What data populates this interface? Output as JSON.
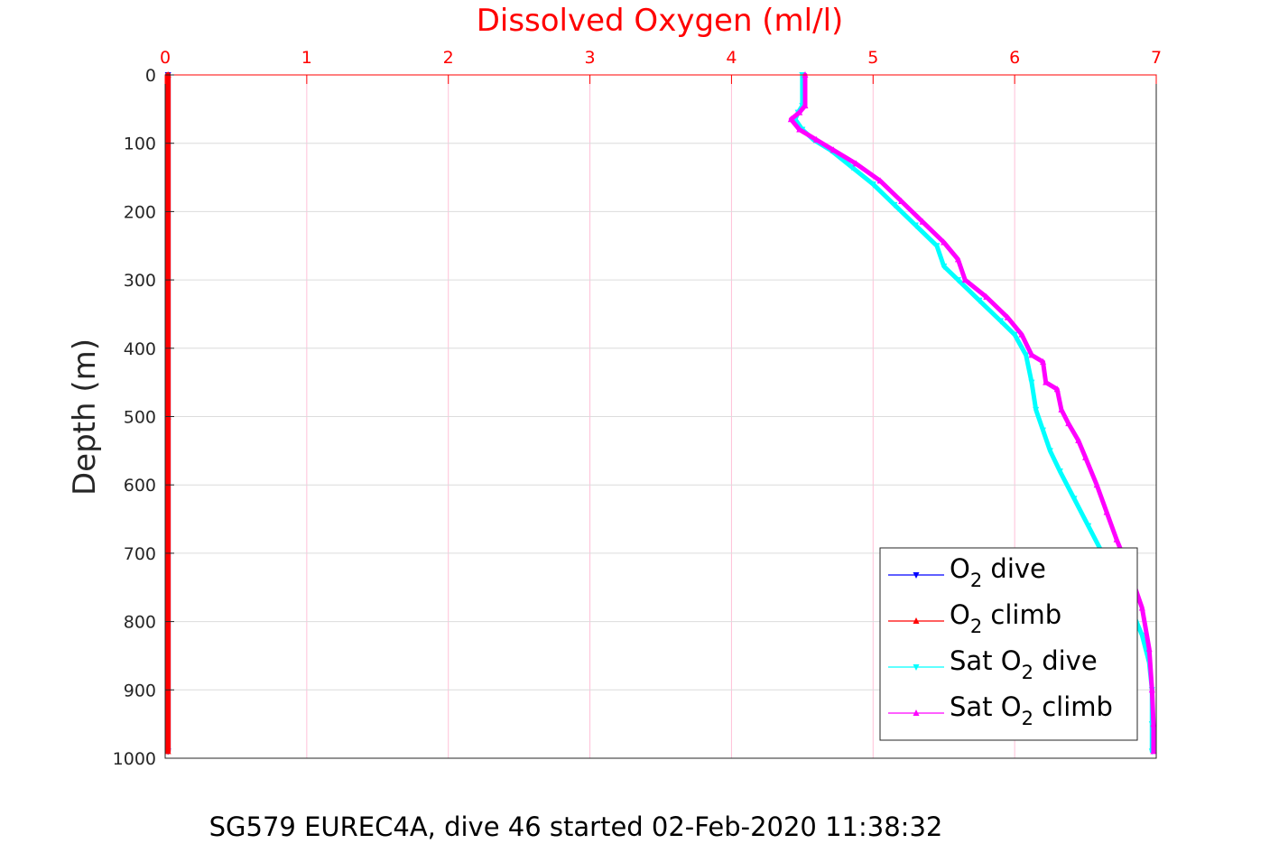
{
  "chart_data": {
    "type": "line",
    "title": "",
    "xlabel": "Dissolved Oxygen (ml/l)",
    "ylabel": "Depth (m)",
    "caption": "SG579 EUREC4A, dive 46 started 02-Feb-2020 11:38:32",
    "xlim": [
      0,
      7
    ],
    "ylim": [
      0,
      1000
    ],
    "y_reversed": true,
    "x_axis_position": "top",
    "grid": true,
    "xticks": [
      "0",
      "1",
      "2",
      "3",
      "4",
      "5",
      "6",
      "7"
    ],
    "yticks": [
      "0",
      "100",
      "200",
      "300",
      "400",
      "500",
      "600",
      "700",
      "800",
      "900",
      "1000"
    ],
    "legend": {
      "placement": "bottom-right",
      "entries": [
        {
          "pre": "O",
          "sub": "2",
          "post": " dive"
        },
        {
          "pre": "O",
          "sub": "2",
          "post": " climb"
        },
        {
          "pre": "Sat O",
          "sub": "2",
          "post": " dive"
        },
        {
          "pre": "Sat O",
          "sub": "2",
          "post": " climb"
        }
      ]
    },
    "series": [
      {
        "key": "o2-dive",
        "color": "#0000ff",
        "marker": "triangle-down",
        "x": [
          0.02,
          0.02
        ],
        "y": [
          0,
          990
        ]
      },
      {
        "key": "o2-climb",
        "color": "#ff0000",
        "marker": "triangle-up",
        "x": [
          0.02,
          0.02,
          0.02
        ],
        "y": [
          0,
          500,
          990
        ]
      },
      {
        "key": "sat-o2-dive",
        "color": "#00ffff",
        "marker": "triangle-down",
        "x": [
          4.5,
          4.5,
          4.47,
          4.45,
          4.5,
          4.58,
          4.7,
          4.85,
          5.0,
          5.15,
          5.3,
          5.45,
          5.5,
          5.6,
          5.75,
          5.9,
          6.0,
          6.08,
          6.12,
          6.15,
          6.2,
          6.25,
          6.32,
          6.42,
          6.52,
          6.62,
          6.7,
          6.8,
          6.9,
          6.95,
          6.97,
          6.97,
          6.97
        ],
        "y": [
          0,
          45,
          55,
          65,
          80,
          95,
          110,
          135,
          160,
          190,
          220,
          250,
          280,
          300,
          330,
          360,
          380,
          410,
          450,
          490,
          520,
          550,
          580,
          620,
          660,
          700,
          740,
          770,
          820,
          860,
          900,
          950,
          990
        ]
      },
      {
        "key": "sat-o2-climb",
        "color": "#ff00ff",
        "marker": "triangle-up",
        "x": [
          4.52,
          4.52,
          4.48,
          4.42,
          4.48,
          4.6,
          4.72,
          4.88,
          5.05,
          5.2,
          5.35,
          5.5,
          5.6,
          5.65,
          5.8,
          5.95,
          6.05,
          6.12,
          6.2,
          6.22,
          6.3,
          6.33,
          6.38,
          6.45,
          6.5,
          6.58,
          6.65,
          6.72,
          6.8,
          6.9,
          6.95,
          6.97,
          6.98,
          6.98
        ],
        "y": [
          0,
          45,
          55,
          65,
          80,
          95,
          110,
          130,
          155,
          185,
          215,
          245,
          270,
          300,
          325,
          355,
          380,
          410,
          420,
          450,
          460,
          490,
          510,
          535,
          560,
          600,
          640,
          680,
          720,
          780,
          840,
          900,
          950,
          990
        ]
      }
    ]
  }
}
